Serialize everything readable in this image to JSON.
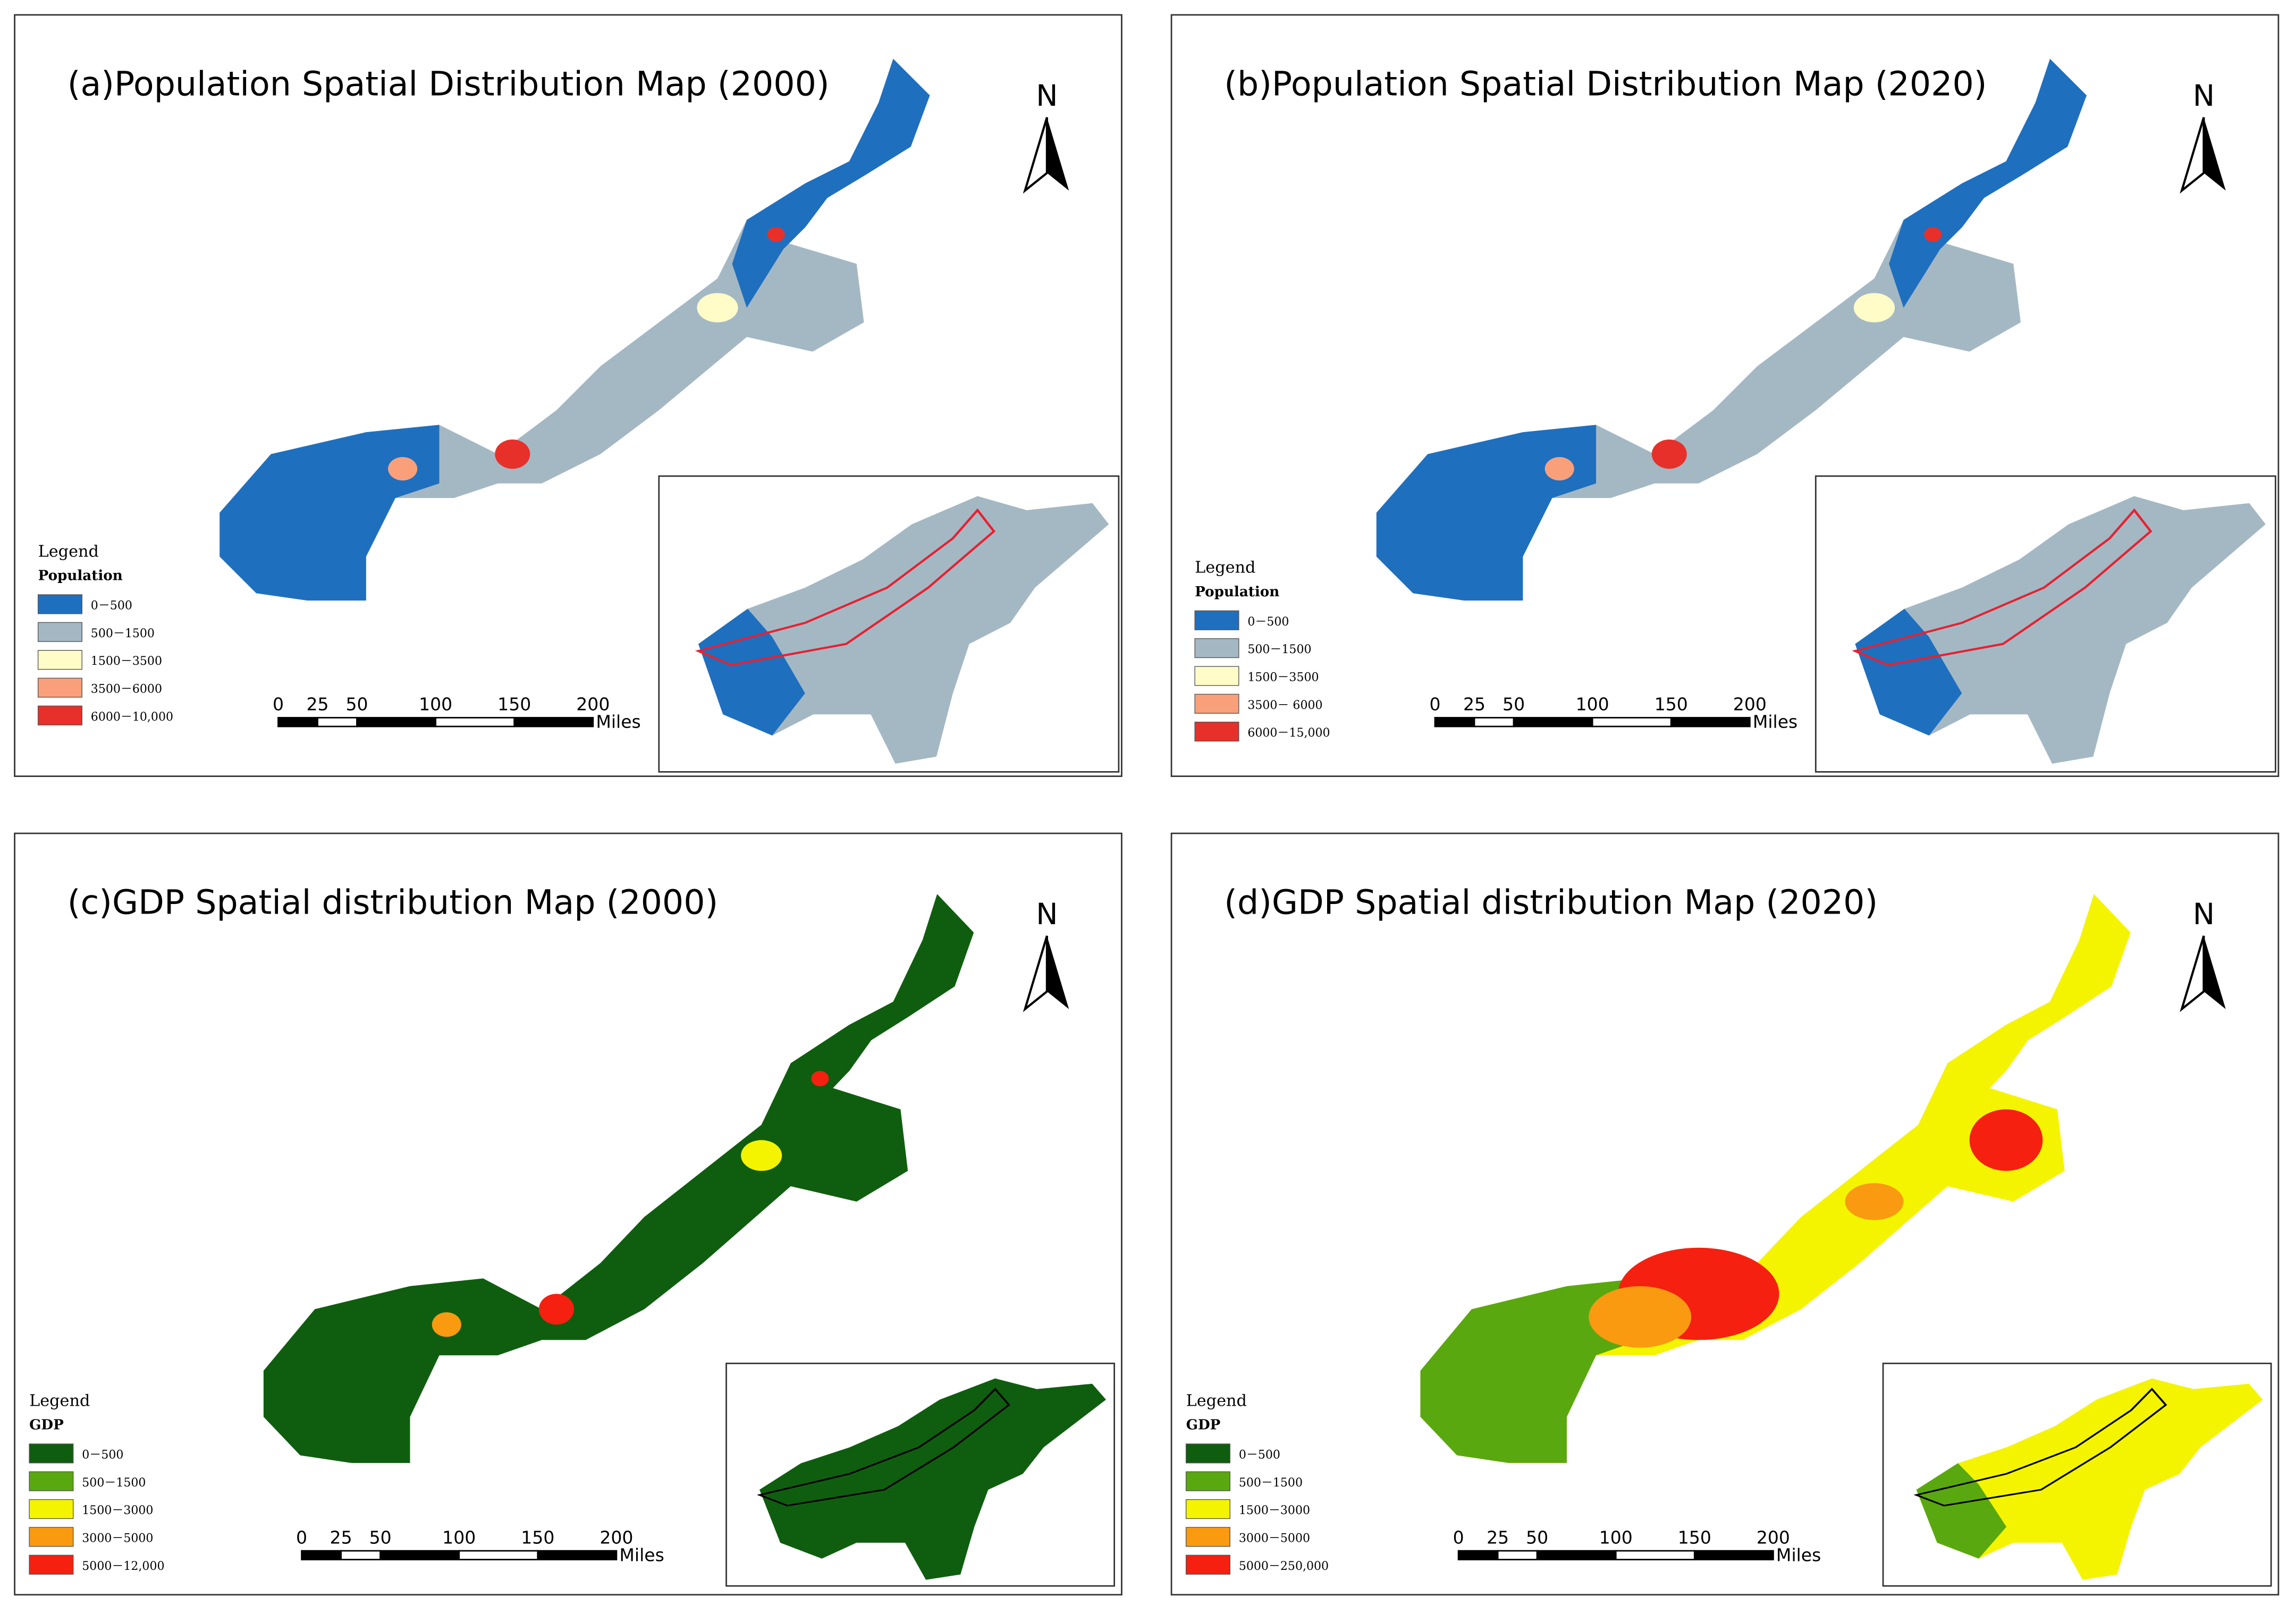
{
  "panels": [
    {
      "title": "(a)Population Spatial Distribution Map (2000)",
      "north": "N",
      "legend": {
        "title": "Legend",
        "subtitle": "Population",
        "items": [
          {
            "label": "0－500",
            "color": "#1f6fbf"
          },
          {
            "label": "500－1500",
            "color": "#a4b8c4"
          },
          {
            "label": "1500－3500",
            "color": "#fffcc8"
          },
          {
            "label": "3500－6000",
            "color": "#f9a07a"
          },
          {
            "label": "6000－10,000",
            "color": "#e8302a"
          }
        ]
      },
      "scale": {
        "ticks": [
          0,
          25,
          50,
          100,
          150,
          200
        ],
        "unit": "Miles"
      }
    },
    {
      "title": "(b)Population Spatial Distribution Map (2020)",
      "north": "N",
      "legend": {
        "title": "Legend",
        "subtitle": "Population",
        "items": [
          {
            "label": "0－500",
            "color": "#1f6fbf"
          },
          {
            "label": "500－1500",
            "color": "#a4b8c4"
          },
          {
            "label": "1500－3500",
            "color": "#fffcc8"
          },
          {
            "label": "3500－ 6000",
            "color": "#f9a07a"
          },
          {
            "label": "6000－15,000",
            "color": "#e8302a"
          }
        ]
      },
      "scale": {
        "ticks": [
          0,
          25,
          50,
          100,
          150,
          200
        ],
        "unit": "Miles"
      }
    },
    {
      "title": "(c)GDP Spatial distribution Map (2000)",
      "north": "N",
      "legend": {
        "title": "Legend",
        "subtitle": "GDP",
        "items": [
          {
            "label": "0－500",
            "color": "#0f5e0f"
          },
          {
            "label": "500－1500",
            "color": "#5aa80f"
          },
          {
            "label": "1500－3000",
            "color": "#f4f400"
          },
          {
            "label": "3000－5000",
            "color": "#f99a10"
          },
          {
            "label": "5000－12,000",
            "color": "#f52010"
          }
        ]
      },
      "scale": {
        "ticks": [
          0,
          25,
          50,
          100,
          150,
          200
        ],
        "unit": "Miles"
      }
    },
    {
      "title": "(d)GDP Spatial distribution Map (2020)",
      "north": "N",
      "legend": {
        "title": "Legend",
        "subtitle": "GDP",
        "items": [
          {
            "label": "0－500",
            "color": "#0f5e0f"
          },
          {
            "label": "500－1500",
            "color": "#5aa80f"
          },
          {
            "label": "1500－3000",
            "color": "#f4f400"
          },
          {
            "label": "3000－5000",
            "color": "#f99a10"
          },
          {
            "label": "5000－250,000",
            "color": "#f52010"
          }
        ]
      },
      "scale": {
        "ticks": [
          0,
          25,
          50,
          100,
          150,
          200
        ],
        "unit": "Miles"
      }
    }
  ]
}
